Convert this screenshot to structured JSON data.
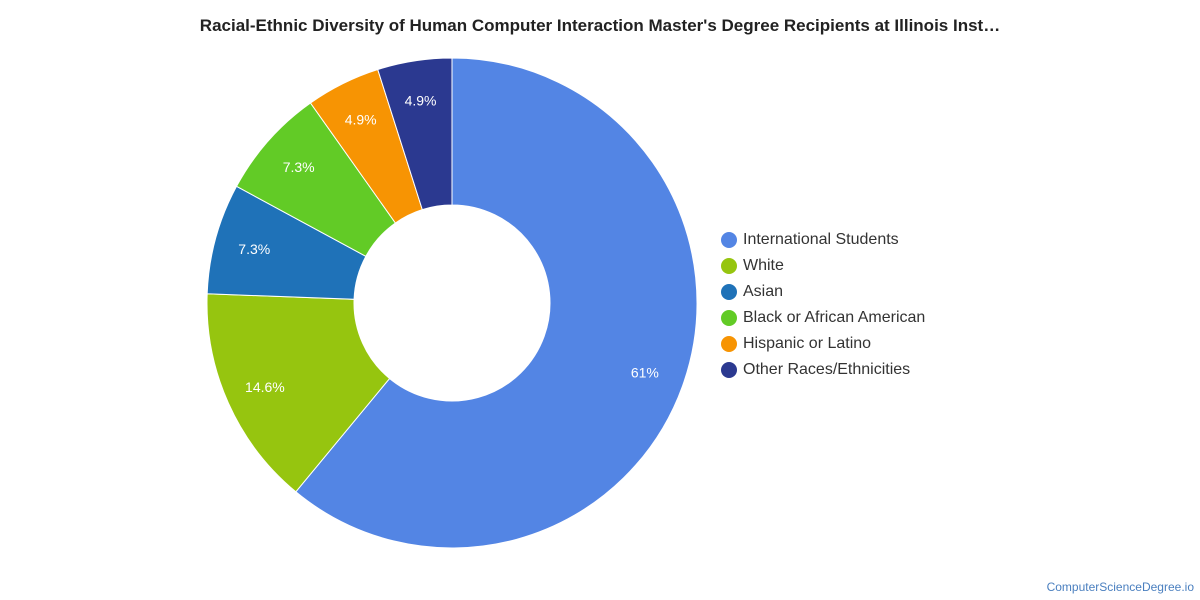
{
  "chart_data": {
    "type": "pie",
    "donut": true,
    "title": "Racial-Ethnic Diversity of Human Computer Interaction Master's Degree Recipients at Illinois Inst…",
    "legend_position": "right",
    "slices": [
      {
        "name": "International Students",
        "value": 61.0,
        "label": "61%",
        "color": "#5385e4"
      },
      {
        "name": "White",
        "value": 14.6,
        "label": "14.6%",
        "color": "#96c50f"
      },
      {
        "name": "Asian",
        "value": 7.3,
        "label": "7.3%",
        "color": "#1f72b8"
      },
      {
        "name": "Black or African American",
        "value": 7.3,
        "label": "7.3%",
        "color": "#62cb26"
      },
      {
        "name": "Hispanic or Latino",
        "value": 4.9,
        "label": "4.9%",
        "color": "#f79403"
      },
      {
        "name": "Other Races/Ethnicities",
        "value": 4.9,
        "label": "4.9%",
        "color": "#2b3990"
      }
    ]
  },
  "footer": {
    "source": "ComputerScienceDegree.io"
  }
}
